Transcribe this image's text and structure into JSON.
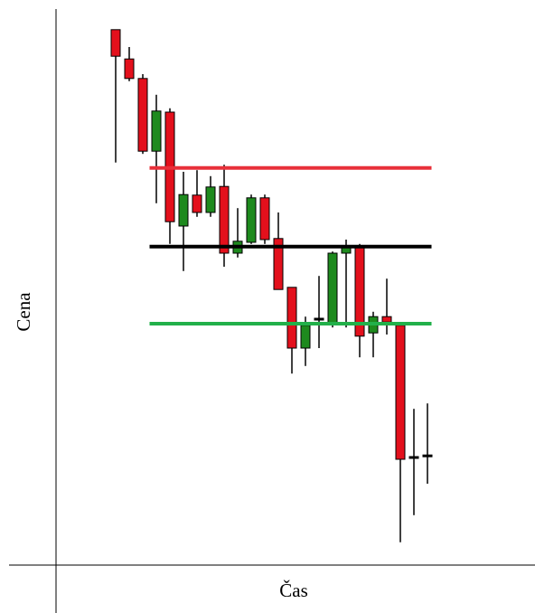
{
  "chart_data": {
    "type": "candlestick",
    "xlabel": "Čas",
    "ylabel": "Cena",
    "ylim": [
      0,
      100
    ],
    "up_color": "#1e8a1e",
    "down_color": "#e3101c",
    "doji_color": "#000000",
    "open": [
      98.7,
      93.3,
      89.7,
      76.3,
      83.5,
      62.5,
      68.2,
      65.0,
      69.8,
      57.5,
      59.5,
      67.7,
      60.2,
      51.2,
      40.0,
      45.2,
      44.5,
      57.5,
      58.7,
      42.8,
      45.8,
      44.2,
      20.0,
      20.0
    ],
    "high": [
      98.7,
      95.5,
      90.5,
      86.7,
      84.2,
      72.5,
      72.8,
      71.7,
      73.8,
      65.8,
      68.3,
      68.3,
      65.0,
      51.2,
      45.8,
      53.3,
      57.8,
      60.0,
      59.2,
      46.7,
      52.8,
      44.2,
      28.8,
      29.8
    ],
    "low": [
      74.2,
      89.2,
      75.8,
      66.7,
      59.2,
      54.2,
      64.2,
      64.2,
      55.0,
      56.7,
      59.2,
      59.2,
      50.8,
      35.3,
      36.7,
      40.0,
      43.8,
      43.8,
      38.3,
      38.3,
      42.5,
      4.2,
      9.2,
      15.0
    ],
    "close": [
      93.8,
      89.7,
      76.3,
      83.7,
      63.3,
      68.3,
      65.0,
      69.7,
      57.5,
      59.7,
      67.7,
      60.0,
      50.8,
      40.0,
      44.2,
      45.5,
      57.5,
      58.5,
      42.2,
      45.8,
      44.8,
      19.5,
      20.0,
      20.3
    ],
    "hlines": [
      {
        "value": 73.2,
        "color": "#e8303a"
      },
      {
        "value": 58.7,
        "color": "#000000"
      },
      {
        "value": 44.5,
        "color": "#22b04a"
      }
    ]
  }
}
